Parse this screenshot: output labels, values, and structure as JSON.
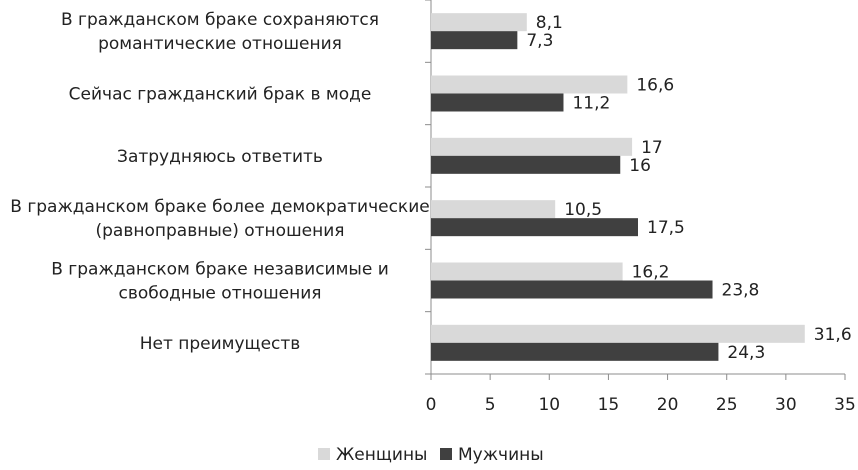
{
  "chart_data": {
    "type": "bar",
    "orientation": "horizontal",
    "categories": [
      [
        "В гражданском браке сохраняются",
        "романтические отношения"
      ],
      [
        "Сейчас гражданский брак в моде"
      ],
      [
        "Затрудняюсь ответить"
      ],
      [
        "В гражданском браке более демократические",
        "(равноправные) отношения"
      ],
      [
        "В гражданском браке независимые и",
        "свободные отношения"
      ],
      [
        "Нет преимуществ"
      ]
    ],
    "series": [
      {
        "name": "Женщины",
        "color": "#d9d9d9",
        "values": [
          8.1,
          16.6,
          17,
          10.5,
          16.2,
          31.6
        ],
        "labels": [
          "8,1",
          "16,6",
          "17",
          "10,5",
          "16,2",
          "31,6"
        ]
      },
      {
        "name": "Мужчины",
        "color": "#404040",
        "values": [
          7.3,
          11.2,
          16,
          17.5,
          23.8,
          24.3
        ],
        "labels": [
          "7,3",
          "11,2",
          "16",
          "17,5",
          "23,8",
          "24,3"
        ]
      }
    ],
    "xlim": [
      0,
      35
    ],
    "xticks": [
      0,
      5,
      10,
      15,
      20,
      25,
      30,
      35
    ],
    "grid": false,
    "legend_position": "bottom"
  }
}
